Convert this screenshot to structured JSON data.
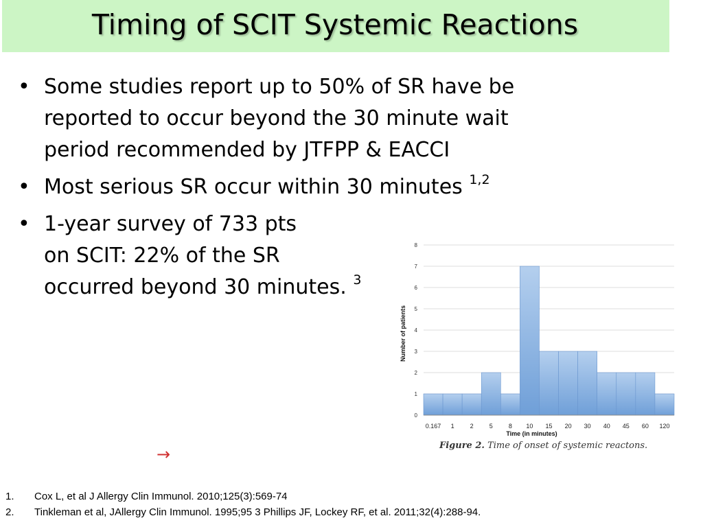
{
  "slide": {
    "title": "Timing of SCIT Systemic Reactions",
    "bullets": [
      {
        "bullet": "•",
        "lines": [
          "Some studies report up to 50% of SR have be",
          "reported to occur beyond the 30 minute wait",
          "period recommended by JTFPP & EACCI"
        ],
        "sup": ""
      },
      {
        "bullet": "•",
        "lines": [
          "Most serious SR occur within 30 minutes"
        ],
        "sup": "1,2"
      },
      {
        "bullet": "•",
        "lines": [
          "1-year survey of 733 pts",
          "on SCIT: 22% of  the SR",
          "occurred beyond 30 minutes."
        ],
        "sup": "3"
      }
    ],
    "arrow": "→",
    "references": [
      {
        "num": "1.",
        "text": "Cox L, et al J Allergy Clin Immunol. 2010;125(3):569-74"
      },
      {
        "num": "2.",
        "text": "Tinkleman  et al, JAllergy Clin Immunol. 1995;95 3 Phillips JF, Lockey RF, et al. 2011;32(4):288-94."
      }
    ]
  },
  "colors": {
    "title_bg": "#ccf5c5",
    "bar_top": "#b4cfee",
    "bar_bottom": "#6f9fd8",
    "bar_stroke": "#6a96cf",
    "grid": "#dddddd",
    "arrow": "#d03030"
  },
  "chart_data": {
    "type": "bar",
    "categories": [
      "0.167",
      "1",
      "2",
      "5",
      "8",
      "10",
      "15",
      "20",
      "30",
      "40",
      "45",
      "60",
      "120"
    ],
    "values": [
      1,
      1,
      1,
      2,
      1,
      7,
      3,
      3,
      3,
      2,
      2,
      2,
      1
    ],
    "ylabel": "Number of patients",
    "xlabel": "Time (in minutes)",
    "ylim": [
      0,
      8
    ],
    "yticks": [
      0,
      1,
      2,
      3,
      4,
      5,
      6,
      7,
      8
    ],
    "grid": true,
    "caption_label": "Figure 2.",
    "caption_text": "Time of onset of systemic reactons."
  }
}
